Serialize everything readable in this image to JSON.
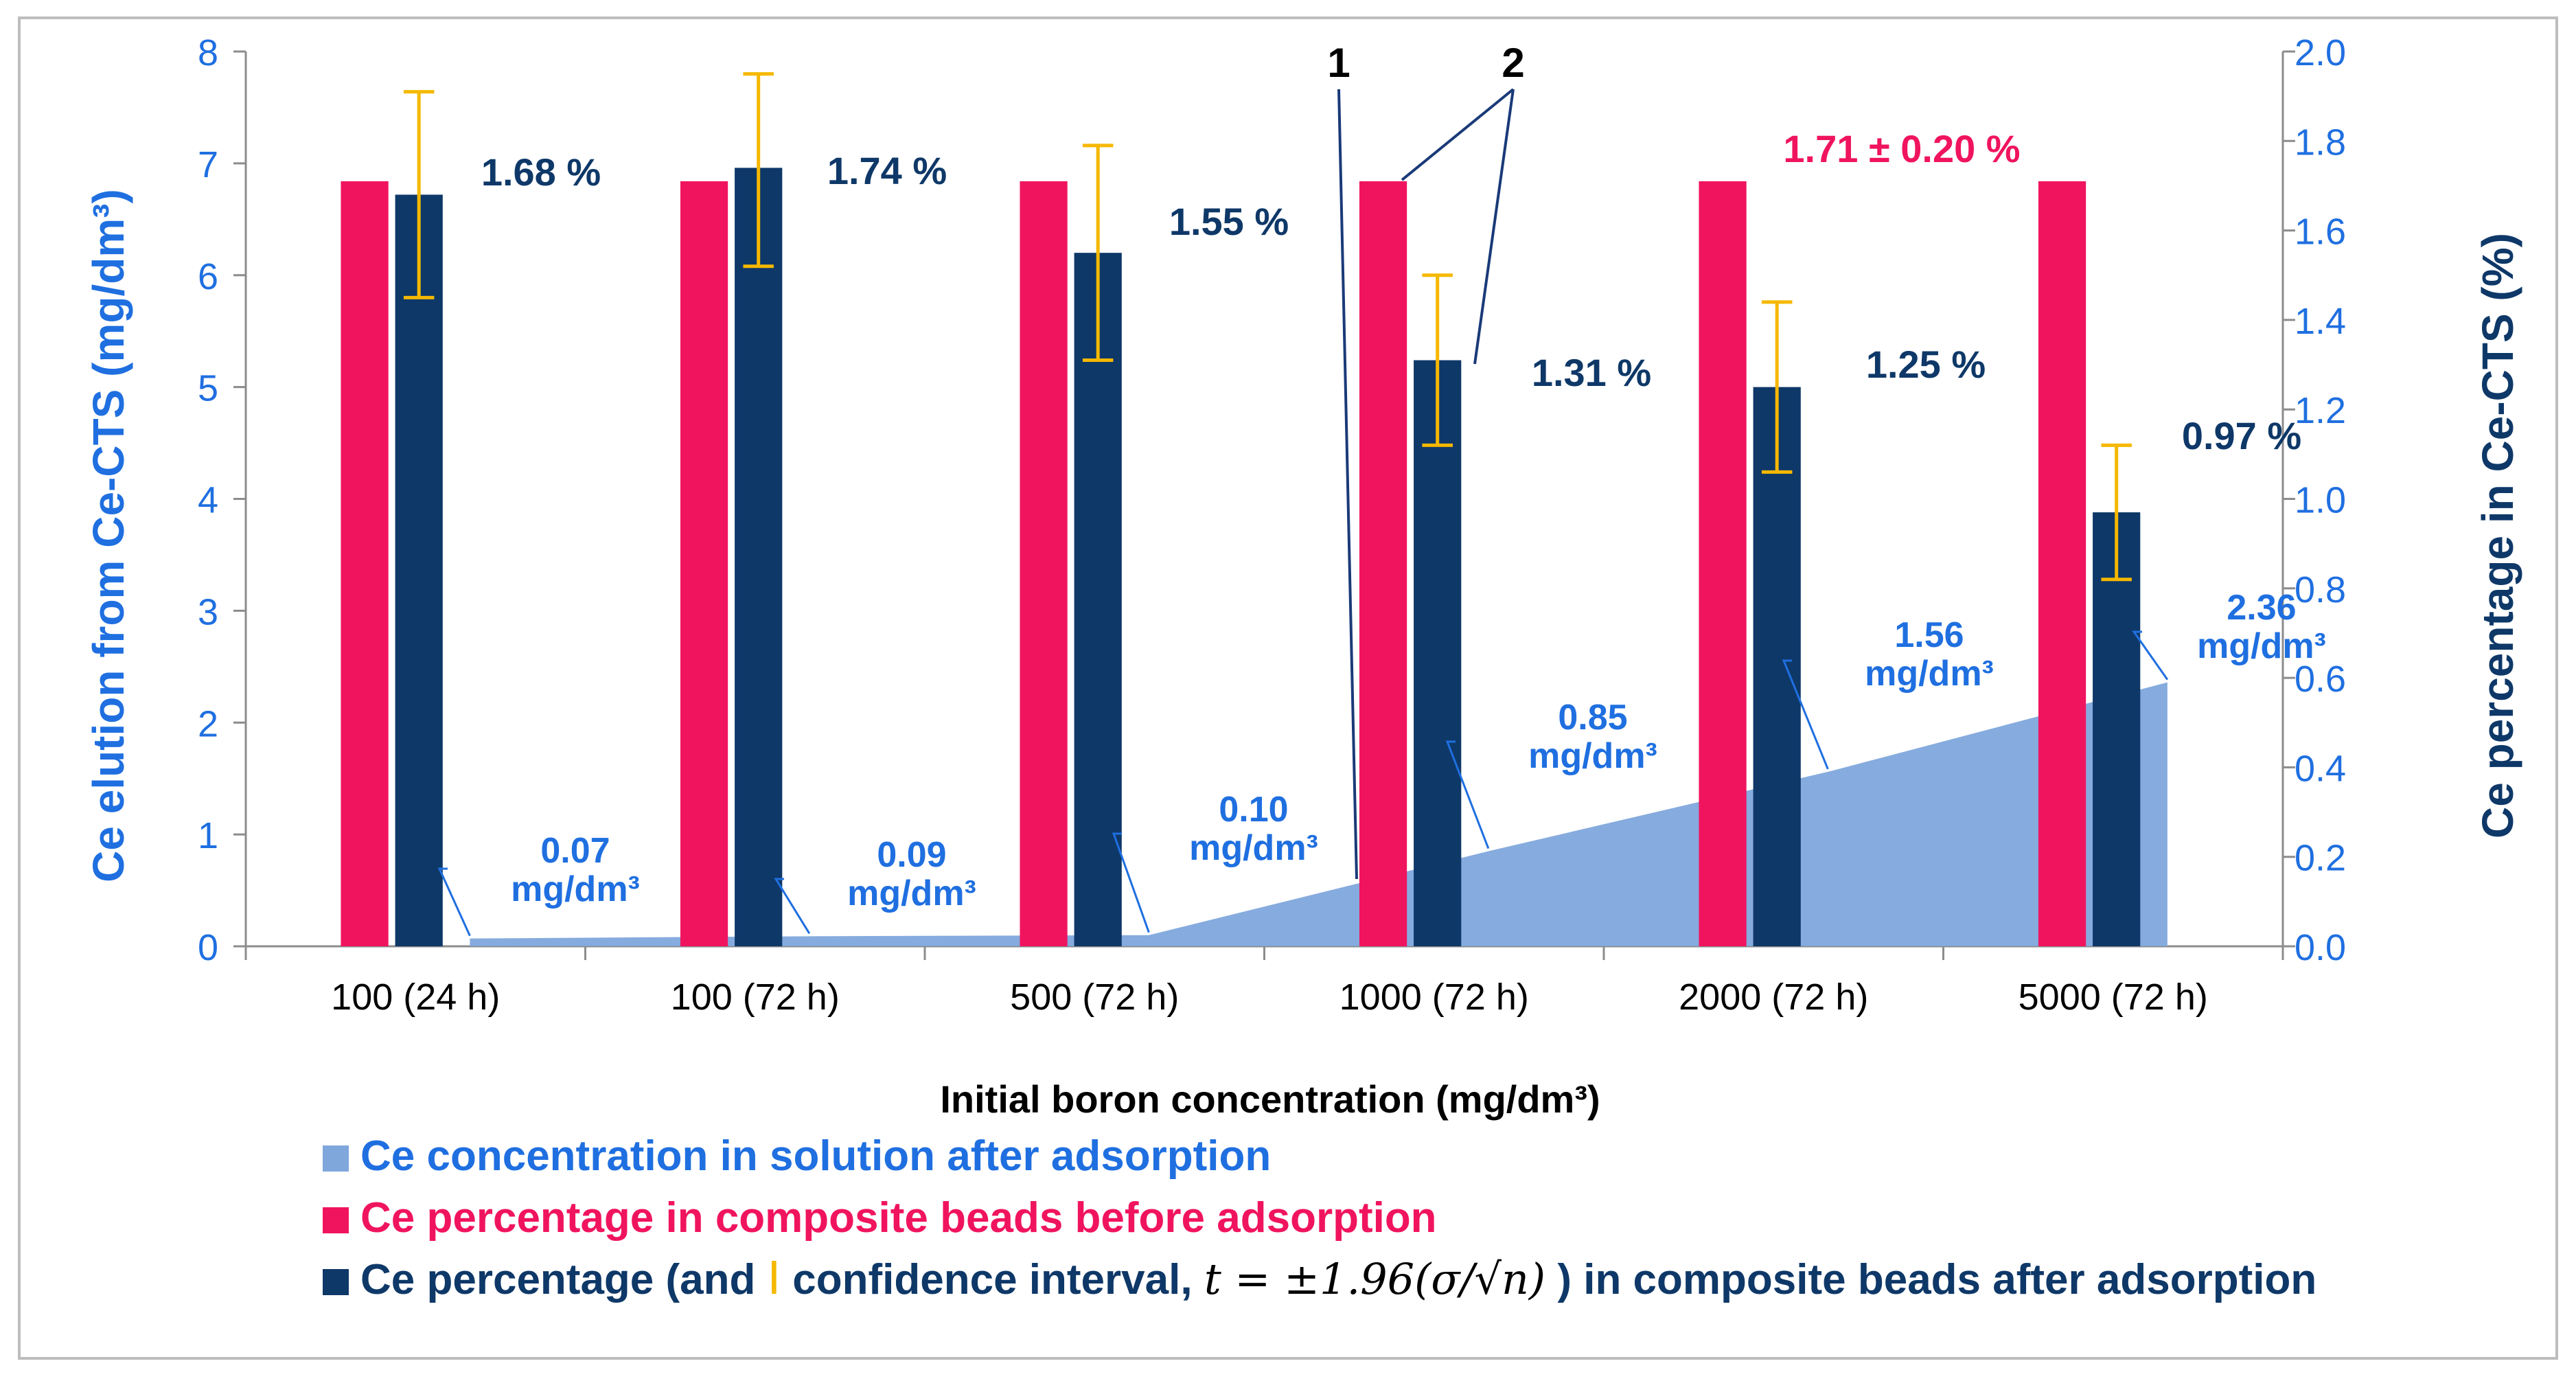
{
  "chart_data": {
    "type": "bar",
    "categories": [
      "100 (24 h)",
      "100 (72 h)",
      "500 (72 h)",
      "1000 (72 h)",
      "2000 (72 h)",
      "5000 (72 h)"
    ],
    "xlabel": "Initial boron concentration (mg/dm³)",
    "y_left": {
      "label": "Ce elution from Ce-CTS (mg/dm³)",
      "range": [
        0,
        8
      ],
      "ticks": [
        "0",
        "1",
        "2",
        "3",
        "4",
        "5",
        "6",
        "7",
        "8"
      ]
    },
    "y_right": {
      "label": "Ce percentage in Ce-CTS (%)",
      "range": [
        0,
        2
      ],
      "ticks": [
        "0.0",
        "0.2",
        "0.4",
        "0.6",
        "0.8",
        "1.0",
        "1.2",
        "1.4",
        "1.6",
        "1.8",
        "2.0"
      ]
    },
    "series": [
      {
        "name": "Ce concentration in solution after adsorption",
        "kind": "area",
        "axis": "left",
        "color": "#7fa7dc",
        "values": [
          0.07,
          0.09,
          0.1,
          0.85,
          1.56,
          2.36
        ],
        "labels": [
          [
            "0.07",
            "mg/dm³"
          ],
          [
            "0.09",
            "mg/dm³"
          ],
          [
            "0.10",
            "mg/dm³"
          ],
          [
            "0.85",
            "mg/dm³"
          ],
          [
            "1.56",
            "mg/dm³"
          ],
          [
            "2.36",
            "mg/dm³"
          ]
        ]
      },
      {
        "name": "Ce percentage in composite beads before adsorption",
        "kind": "bar",
        "axis": "right",
        "color": "#f0145f",
        "values": [
          1.71,
          1.71,
          1.71,
          1.71,
          1.71,
          1.71
        ]
      },
      {
        "name": "Ce percentage (and confidence interval) in composite beads after adsorption",
        "kind": "bar",
        "axis": "right",
        "color": "#0e3868",
        "values": [
          1.68,
          1.74,
          1.55,
          1.31,
          1.25,
          0.97
        ],
        "error_low": [
          1.45,
          1.52,
          1.31,
          1.12,
          1.06,
          0.82
        ],
        "error_high": [
          1.91,
          1.95,
          1.79,
          1.5,
          1.44,
          1.12
        ],
        "labels": [
          "1.68 %",
          "1.74 %",
          "1.55 %",
          "1.31 %",
          "1.25 %",
          "0.97 %"
        ]
      }
    ],
    "annotations": {
      "before_value": "1.71 ± 0.20 %",
      "marker_1": "1",
      "marker_2": "2"
    },
    "legend": {
      "item1": "Ce concentration in solution after adsorption",
      "item2": "Ce percentage in composite beads before adsorption",
      "item3_a": "Ce percentage  (and ",
      "item3_b": " confidence interval, ",
      "item3_formula": "t = ±1.96(σ/√n)",
      "item3_c": ") in composite beads after adsorption"
    },
    "colors": {
      "area": "#7fa7dc",
      "before": "#f0145f",
      "after": "#0e3868",
      "error": "#f5b800",
      "left_axis_text": "#1f6fe0",
      "right_axis_text": "#0e3868"
    }
  }
}
